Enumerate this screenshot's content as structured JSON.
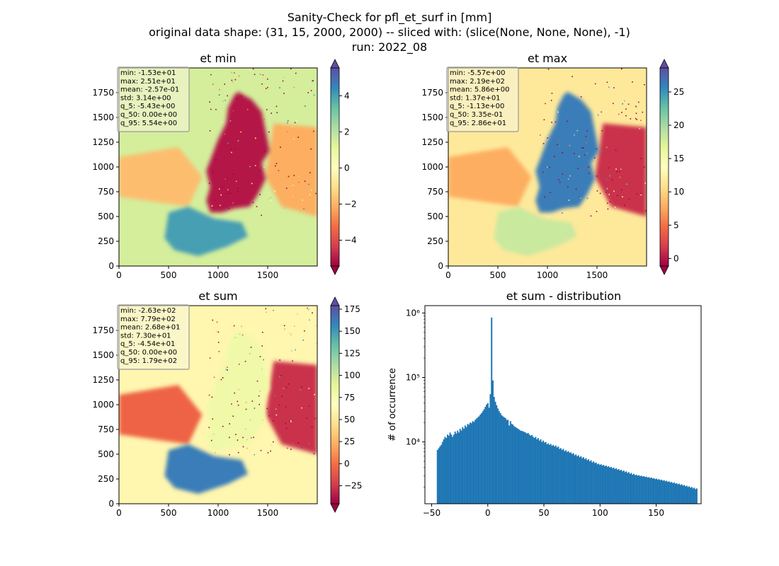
{
  "figure": {
    "title_lines": [
      "Sanity-Check for pfl_et_surf in [mm]",
      "original data shape: (31, 15, 2000, 2000) -- sliced with: (slice(None, None, None), -1)",
      "run: 2022_08"
    ]
  },
  "panels": [
    {
      "title": "et min",
      "stats": [
        "min: -1.53e+01",
        "max: 2.51e+01",
        "mean: -2.57e-01",
        "std: 3.14e+00",
        "q_5: -5.43e+00",
        "q_50: 0.00e+00",
        "q_95: 5.54e+00"
      ],
      "x_ticks": [
        "0",
        "500",
        "1000",
        "1500"
      ],
      "y_ticks": [
        "0",
        "250",
        "500",
        "750",
        "1000",
        "1250",
        "1500",
        "1750"
      ],
      "colorbar": {
        "vmin": -5.43,
        "vmax": 5.54,
        "ticks": [
          -4,
          -2,
          0,
          2,
          4
        ],
        "labels": [
          "−4",
          "−2",
          "0",
          "2",
          "4"
        ]
      },
      "map_variant": "min"
    },
    {
      "title": "et max",
      "stats": [
        "min: -5.57e+00",
        "max: 2.19e+02",
        "mean: 5.86e+00",
        "std: 1.37e+01",
        "q_5: -1.13e+00",
        "q_50: 3.35e-01",
        "q_95: 2.86e+01"
      ],
      "x_ticks": [
        "0",
        "500",
        "1000",
        "1500"
      ],
      "y_ticks": [
        "0",
        "250",
        "500",
        "750",
        "1000",
        "1250",
        "1500",
        "1750"
      ],
      "colorbar": {
        "vmin": -1.13,
        "vmax": 28.6,
        "ticks": [
          0,
          5,
          10,
          15,
          20,
          25
        ],
        "labels": [
          "0",
          "5",
          "10",
          "15",
          "20",
          "25"
        ]
      },
      "map_variant": "max"
    },
    {
      "title": "et sum",
      "stats": [
        "min: -2.63e+02",
        "max: 7.79e+02",
        "mean: 2.68e+01",
        "std: 7.30e+01",
        "q_5: -4.54e+01",
        "q_50: 0.00e+00",
        "q_95: 1.79e+02"
      ],
      "x_ticks": [
        "0",
        "500",
        "1000",
        "1500"
      ],
      "y_ticks": [
        "0",
        "250",
        "500",
        "750",
        "1000",
        "1250",
        "1500",
        "1750"
      ],
      "colorbar": {
        "vmin": -45.4,
        "vmax": 179,
        "ticks": [
          -25,
          0,
          25,
          50,
          75,
          100,
          125,
          150,
          175
        ],
        "labels": [
          "−25",
          "0",
          "25",
          "50",
          "75",
          "100",
          "125",
          "150",
          "175"
        ]
      },
      "map_variant": "sum"
    }
  ],
  "colors": {
    "cmap": [
      "#9e0142",
      "#d53e4f",
      "#f46d43",
      "#fdae61",
      "#fee08b",
      "#ffffbf",
      "#e6f598",
      "#abdda4",
      "#66c2a5",
      "#3288bd",
      "#5e4fa2"
    ],
    "hist_bar": "#1f77b4"
  },
  "chart_data": [
    {
      "type": "heatmap",
      "title": "et min",
      "xlim": [
        0,
        2000
      ],
      "ylim": [
        0,
        2000
      ],
      "colorbar_range": [
        -5.43,
        5.54
      ],
      "colormap": "Spectral"
    },
    {
      "type": "heatmap",
      "title": "et max",
      "xlim": [
        0,
        2000
      ],
      "ylim": [
        0,
        2000
      ],
      "colorbar_range": [
        -1.13,
        28.6
      ],
      "colormap": "Spectral"
    },
    {
      "type": "heatmap",
      "title": "et sum",
      "xlim": [
        0,
        2000
      ],
      "ylim": [
        0,
        2000
      ],
      "colorbar_range": [
        -45.4,
        179
      ],
      "colormap": "Spectral"
    },
    {
      "type": "bar",
      "title": "et sum - distribution",
      "xlabel": "",
      "ylabel": "# of occurrence",
      "yscale": "log",
      "xlim": [
        -56,
        190
      ],
      "ylim": [
        1100,
        1300000
      ],
      "x_ticks": [
        -50,
        0,
        50,
        100,
        150
      ],
      "x_tick_labels": [
        "−50",
        "0",
        "50",
        "100",
        "150"
      ],
      "y_ticks": [
        10000,
        100000,
        1000000
      ],
      "y_tick_labels": [
        "10⁴",
        "10⁵",
        "10⁶"
      ],
      "bin_start": -45.4,
      "bin_width": 1.121,
      "values": [
        7500,
        8000,
        8500,
        9000,
        10000,
        11000,
        12000,
        11500,
        13000,
        12500,
        14000,
        13000,
        12000,
        13000,
        14500,
        13500,
        15000,
        14000,
        16000,
        15000,
        17000,
        16000,
        18000,
        17000,
        19000,
        18500,
        20000,
        19500,
        21000,
        20500,
        22000,
        23000,
        24000,
        25000,
        26500,
        28000,
        30000,
        32000,
        35000,
        38000,
        40000,
        34000,
        55000,
        850000,
        90000,
        50000,
        42000,
        37000,
        33000,
        30000,
        28000,
        26000,
        25000,
        24000,
        23500,
        22000,
        22000,
        18000,
        21000,
        19000,
        18500,
        17500,
        17000,
        16500,
        16000,
        15500,
        15000,
        14800,
        14600,
        14300,
        14000,
        13500,
        13800,
        13000,
        12500,
        12800,
        12000,
        11500,
        12000,
        11000,
        11500,
        10500,
        11000,
        10000,
        10500,
        9800,
        10000,
        9200,
        9500,
        9000,
        9300,
        8700,
        9000,
        8500,
        8800,
        8200,
        8500,
        7800,
        8000,
        7500,
        7800,
        7200,
        7400,
        7000,
        7200,
        6800,
        6900,
        6500,
        6700,
        6200,
        6400,
        6000,
        6200,
        5800,
        6000,
        5600,
        5800,
        5400,
        5600,
        5200,
        5400,
        5000,
        5200,
        4800,
        5000,
        4700,
        4800,
        4500,
        4600,
        4400,
        4500,
        4300,
        4400,
        4200,
        4300,
        4100,
        4200,
        4000,
        4100,
        3900,
        4000,
        3800,
        3900,
        3700,
        3800,
        3600,
        3700,
        3500,
        3600,
        3400,
        3500,
        3300,
        3400,
        3200,
        3300,
        3100,
        3200,
        3050,
        3100,
        3000,
        3050,
        2950,
        3000,
        2900,
        2950,
        2850,
        2900,
        2800,
        2850,
        2750,
        2800,
        2700,
        2750,
        2650,
        2700,
        2600,
        2650,
        2550,
        2600,
        2500,
        2550,
        2450,
        2500,
        2400,
        2450,
        2350,
        2400,
        2300,
        2350,
        2250,
        2300,
        2200,
        2250,
        2150,
        2200,
        2100,
        2150,
        2050,
        2100,
        2000,
        2050,
        1950,
        2000,
        1900,
        1950,
        1850,
        1900
      ]
    }
  ]
}
